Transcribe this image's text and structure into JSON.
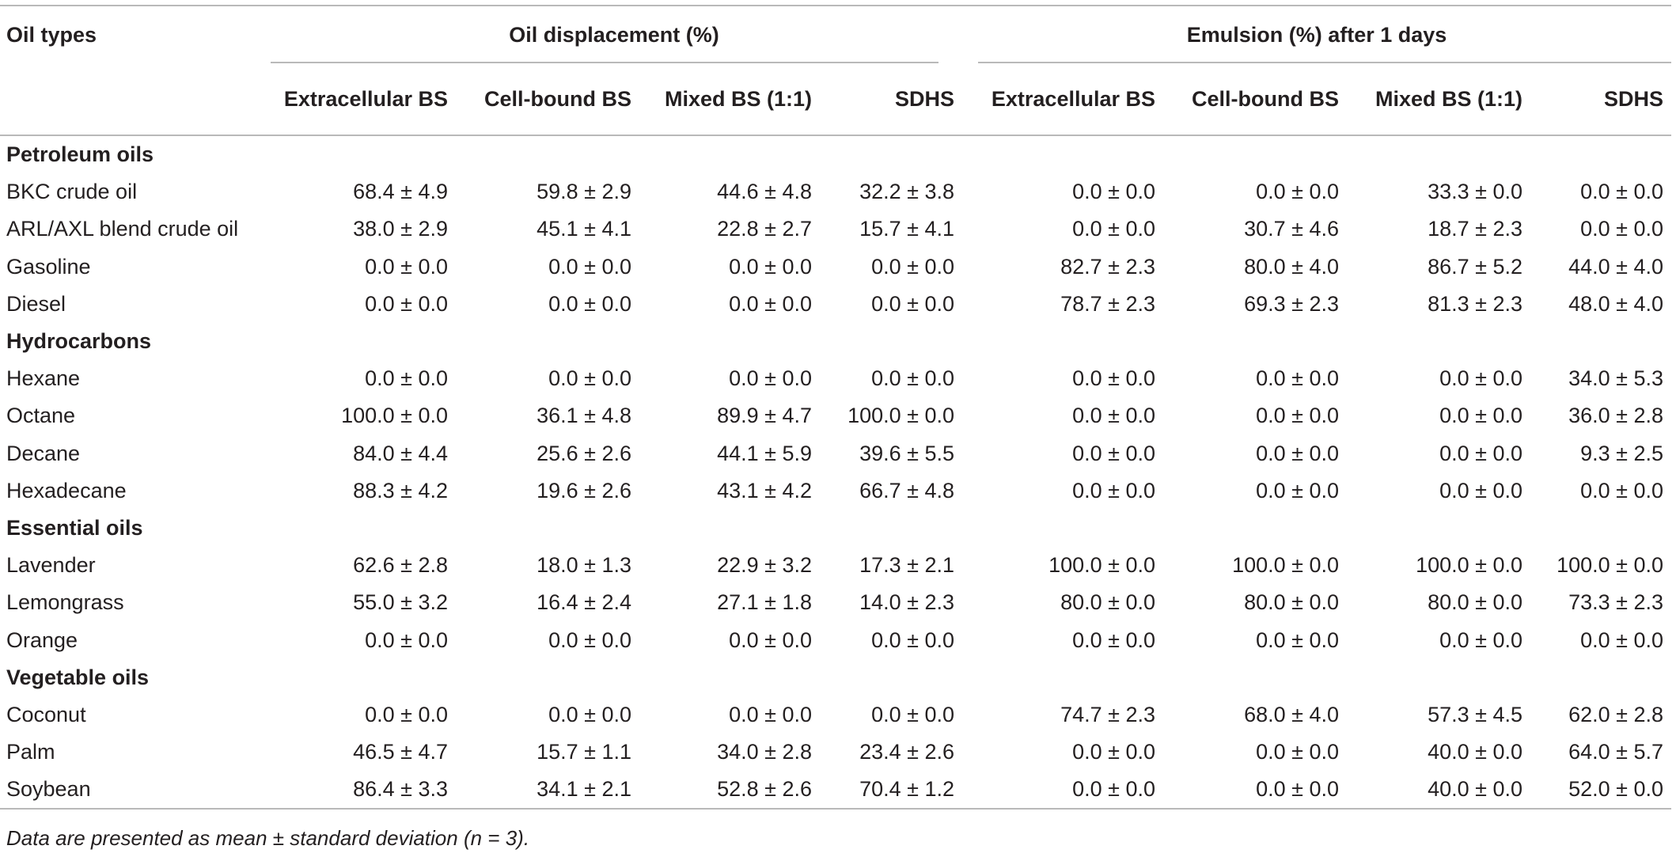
{
  "header": {
    "oil_types": "Oil types",
    "group1": "Oil displacement (%)",
    "group2": "Emulsion (%) after 1 days",
    "columns": [
      "Extracellular BS",
      "Cell-bound BS",
      "Mixed BS (1:1)",
      "SDHS",
      "Extracellular BS",
      "Cell-bound BS",
      "Mixed BS (1:1)",
      "SDHS"
    ]
  },
  "sections": [
    {
      "title": "Petroleum oils",
      "rows": [
        {
          "name": "BKC crude oil",
          "values": [
            "68.4 ± 4.9",
            "59.8 ± 2.9",
            "44.6 ± 4.8",
            "32.2 ± 3.8",
            "0.0 ± 0.0",
            "0.0 ± 0.0",
            "33.3 ± 0.0",
            "0.0 ± 0.0"
          ]
        },
        {
          "name": "ARL/AXL blend crude oil",
          "values": [
            "38.0 ± 2.9",
            "45.1 ± 4.1",
            "22.8 ± 2.7",
            "15.7 ± 4.1",
            "0.0 ± 0.0",
            "30.7 ± 4.6",
            "18.7 ± 2.3",
            "0.0 ± 0.0"
          ]
        },
        {
          "name": "Gasoline",
          "values": [
            "0.0 ± 0.0",
            "0.0 ± 0.0",
            "0.0 ± 0.0",
            "0.0 ± 0.0",
            "82.7 ± 2.3",
            "80.0 ± 4.0",
            "86.7 ± 5.2",
            "44.0 ± 4.0"
          ]
        },
        {
          "name": "Diesel",
          "values": [
            "0.0 ± 0.0",
            "0.0 ± 0.0",
            "0.0 ± 0.0",
            "0.0 ± 0.0",
            "78.7 ± 2.3",
            "69.3 ± 2.3",
            "81.3 ± 2.3",
            "48.0 ± 4.0"
          ]
        }
      ]
    },
    {
      "title": "Hydrocarbons",
      "rows": [
        {
          "name": "Hexane",
          "values": [
            "0.0 ± 0.0",
            "0.0 ± 0.0",
            "0.0 ± 0.0",
            "0.0 ± 0.0",
            "0.0 ± 0.0",
            "0.0 ± 0.0",
            "0.0 ± 0.0",
            "34.0 ± 5.3"
          ]
        },
        {
          "name": "Octane",
          "values": [
            "100.0 ± 0.0",
            "36.1 ± 4.8",
            "89.9 ± 4.7",
            "100.0 ± 0.0",
            "0.0 ± 0.0",
            "0.0 ± 0.0",
            "0.0 ± 0.0",
            "36.0 ± 2.8"
          ]
        },
        {
          "name": "Decane",
          "values": [
            "84.0 ± 4.4",
            "25.6 ± 2.6",
            "44.1 ± 5.9",
            "39.6 ± 5.5",
            "0.0 ± 0.0",
            "0.0 ± 0.0",
            "0.0 ± 0.0",
            "9.3 ± 2.5"
          ]
        },
        {
          "name": "Hexadecane",
          "values": [
            "88.3 ± 4.2",
            "19.6 ± 2.6",
            "43.1 ± 4.2",
            "66.7 ± 4.8",
            "0.0 ± 0.0",
            "0.0 ± 0.0",
            "0.0 ± 0.0",
            "0.0 ± 0.0"
          ]
        }
      ]
    },
    {
      "title": "Essential oils",
      "rows": [
        {
          "name": "Lavender",
          "values": [
            "62.6 ± 2.8",
            "18.0 ± 1.3",
            "22.9 ± 3.2",
            "17.3 ± 2.1",
            "100.0 ± 0.0",
            "100.0 ± 0.0",
            "100.0 ± 0.0",
            "100.0 ± 0.0"
          ]
        },
        {
          "name": "Lemongrass",
          "values": [
            "55.0 ± 3.2",
            "16.4 ± 2.4",
            "27.1 ± 1.8",
            "14.0 ± 2.3",
            "80.0 ± 0.0",
            "80.0 ± 0.0",
            "80.0 ± 0.0",
            "73.3 ± 2.3"
          ]
        },
        {
          "name": "Orange",
          "values": [
            "0.0 ± 0.0",
            "0.0 ± 0.0",
            "0.0 ± 0.0",
            "0.0 ± 0.0",
            "0.0 ± 0.0",
            "0.0 ± 0.0",
            "0.0 ± 0.0",
            "0.0 ± 0.0"
          ]
        }
      ]
    },
    {
      "title": "Vegetable oils",
      "rows": [
        {
          "name": "Coconut",
          "values": [
            "0.0 ± 0.0",
            "0.0 ± 0.0",
            "0.0 ± 0.0",
            "0.0 ± 0.0",
            "74.7 ± 2.3",
            "68.0 ± 4.0",
            "57.3 ± 4.5",
            "62.0 ± 2.8"
          ]
        },
        {
          "name": "Palm",
          "values": [
            "46.5 ± 4.7",
            "15.7 ± 1.1",
            "34.0 ± 2.8",
            "23.4 ± 2.6",
            "0.0 ± 0.0",
            "0.0 ± 0.0",
            "40.0 ± 0.0",
            "64.0 ± 5.7"
          ]
        },
        {
          "name": "Soybean",
          "values": [
            "86.4 ± 3.3",
            "34.1 ± 2.1",
            "52.8 ± 2.6",
            "70.4 ± 1.2",
            "0.0 ± 0.0",
            "0.0 ± 0.0",
            "40.0 ± 0.0",
            "52.0 ± 0.0"
          ]
        }
      ]
    }
  ],
  "footnote": "Data are presented as mean ± standard deviation (n = 3).",
  "colors": {
    "text": "#231f20",
    "rule": "#b9b9b9"
  }
}
